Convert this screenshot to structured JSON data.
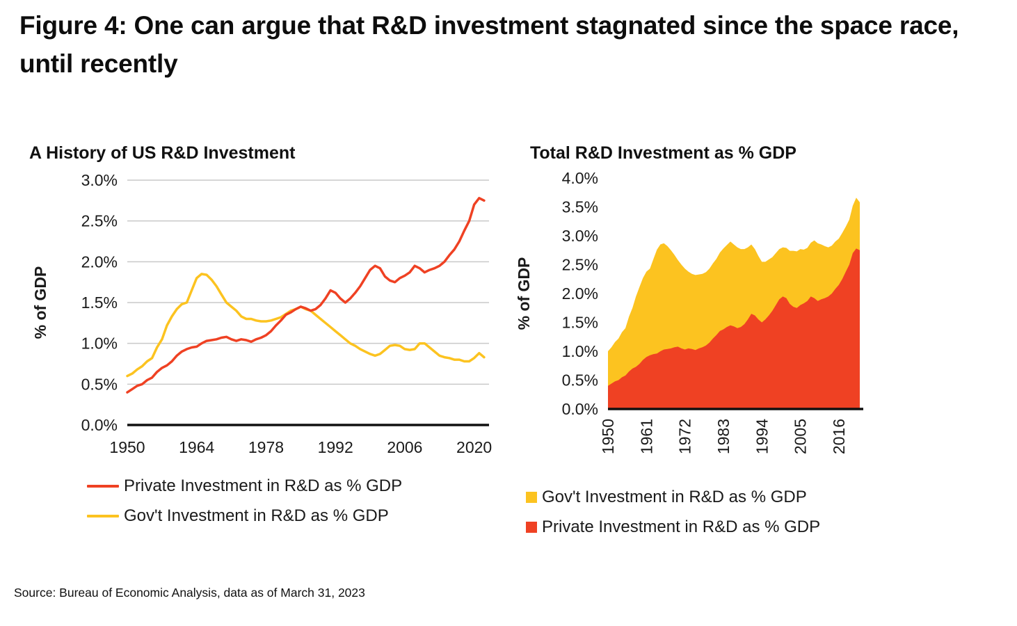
{
  "title": "Figure 4: One can argue that R&D investment stagnated since the space race, until recently",
  "source": "Source: Bureau of Economic Analysis, data as of March 31, 2023",
  "colors": {
    "private": "#ef4123",
    "govt": "#fcc320",
    "grid": "#c9c9c9",
    "axis": "#111111"
  },
  "chart_data": [
    {
      "type": "line",
      "title": "A History of US R&D Investment",
      "ylabel": "% of GDP",
      "x": [
        1950,
        1951,
        1952,
        1953,
        1954,
        1955,
        1956,
        1957,
        1958,
        1959,
        1960,
        1961,
        1962,
        1963,
        1964,
        1965,
        1966,
        1967,
        1968,
        1969,
        1970,
        1971,
        1972,
        1973,
        1974,
        1975,
        1976,
        1977,
        1978,
        1979,
        1980,
        1981,
        1982,
        1983,
        1984,
        1985,
        1986,
        1987,
        1988,
        1989,
        1990,
        1991,
        1992,
        1993,
        1994,
        1995,
        1996,
        1997,
        1998,
        1999,
        2000,
        2001,
        2002,
        2003,
        2004,
        2005,
        2006,
        2007,
        2008,
        2009,
        2010,
        2011,
        2012,
        2013,
        2014,
        2015,
        2016,
        2017,
        2018,
        2019,
        2020,
        2021,
        2022
      ],
      "series": [
        {
          "name": "Private Investment in R&D as % GDP",
          "color_key": "private",
          "values": [
            0.4,
            0.44,
            0.48,
            0.5,
            0.55,
            0.58,
            0.65,
            0.7,
            0.73,
            0.78,
            0.85,
            0.9,
            0.93,
            0.95,
            0.96,
            1.0,
            1.03,
            1.04,
            1.05,
            1.07,
            1.08,
            1.05,
            1.03,
            1.05,
            1.04,
            1.02,
            1.05,
            1.07,
            1.1,
            1.15,
            1.22,
            1.28,
            1.35,
            1.38,
            1.42,
            1.45,
            1.43,
            1.4,
            1.42,
            1.47,
            1.55,
            1.65,
            1.62,
            1.55,
            1.5,
            1.55,
            1.62,
            1.7,
            1.8,
            1.9,
            1.95,
            1.92,
            1.82,
            1.77,
            1.75,
            1.8,
            1.83,
            1.87,
            1.95,
            1.92,
            1.87,
            1.9,
            1.92,
            1.95,
            2.0,
            2.08,
            2.15,
            2.25,
            2.38,
            2.5,
            2.7,
            2.78,
            2.75
          ]
        },
        {
          "name": "Gov't Investment in R&D as % GDP",
          "color_key": "govt",
          "values": [
            0.6,
            0.63,
            0.68,
            0.72,
            0.78,
            0.82,
            0.95,
            1.05,
            1.22,
            1.33,
            1.42,
            1.48,
            1.5,
            1.65,
            1.8,
            1.85,
            1.84,
            1.78,
            1.7,
            1.6,
            1.5,
            1.45,
            1.4,
            1.33,
            1.3,
            1.3,
            1.28,
            1.27,
            1.27,
            1.28,
            1.3,
            1.32,
            1.36,
            1.4,
            1.42,
            1.45,
            1.42,
            1.4,
            1.35,
            1.3,
            1.25,
            1.2,
            1.15,
            1.1,
            1.05,
            1.0,
            0.97,
            0.93,
            0.9,
            0.87,
            0.85,
            0.87,
            0.92,
            0.97,
            0.98,
            0.97,
            0.93,
            0.92,
            0.93,
            1.0,
            1.0,
            0.95,
            0.9,
            0.85,
            0.83,
            0.82,
            0.8,
            0.8,
            0.78,
            0.78,
            0.82,
            0.88,
            0.83
          ]
        }
      ],
      "x_ticks": [
        1950,
        1964,
        1978,
        1992,
        2006,
        2020
      ],
      "y_ticks": [
        "0.0%",
        "0.5%",
        "1.0%",
        "1.5%",
        "2.0%",
        "2.5%",
        "3.0%"
      ],
      "y_max": 3.0,
      "y_step": 0.5,
      "grid": true,
      "legend": [
        "Private Investment in R&D as % GDP",
        "Gov't Investment in R&D as % GDP"
      ],
      "legend_position": "bottom"
    },
    {
      "type": "area",
      "title": "Total R&D Investment as % GDP",
      "ylabel": "% of GDP",
      "stacked": true,
      "x": [
        1950,
        1951,
        1952,
        1953,
        1954,
        1955,
        1956,
        1957,
        1958,
        1959,
        1960,
        1961,
        1962,
        1963,
        1964,
        1965,
        1966,
        1967,
        1968,
        1969,
        1970,
        1971,
        1972,
        1973,
        1974,
        1975,
        1976,
        1977,
        1978,
        1979,
        1980,
        1981,
        1982,
        1983,
        1984,
        1985,
        1986,
        1987,
        1988,
        1989,
        1990,
        1991,
        1992,
        1993,
        1994,
        1995,
        1996,
        1997,
        1998,
        1999,
        2000,
        2001,
        2002,
        2003,
        2004,
        2005,
        2006,
        2007,
        2008,
        2009,
        2010,
        2011,
        2012,
        2013,
        2014,
        2015,
        2016,
        2017,
        2018,
        2019,
        2020,
        2021,
        2022
      ],
      "series": [
        {
          "name": "Gov't Investment in R&D as % GDP",
          "color_key": "govt",
          "values": [
            0.6,
            0.63,
            0.68,
            0.72,
            0.78,
            0.82,
            0.95,
            1.05,
            1.22,
            1.33,
            1.42,
            1.48,
            1.5,
            1.65,
            1.8,
            1.85,
            1.84,
            1.78,
            1.7,
            1.6,
            1.5,
            1.45,
            1.4,
            1.33,
            1.3,
            1.3,
            1.28,
            1.27,
            1.27,
            1.28,
            1.3,
            1.32,
            1.36,
            1.4,
            1.42,
            1.45,
            1.42,
            1.4,
            1.35,
            1.3,
            1.25,
            1.2,
            1.15,
            1.1,
            1.05,
            1.0,
            0.97,
            0.93,
            0.9,
            0.87,
            0.85,
            0.87,
            0.92,
            0.97,
            0.98,
            0.97,
            0.93,
            0.92,
            0.93,
            1.0,
            1.0,
            0.95,
            0.9,
            0.85,
            0.83,
            0.82,
            0.8,
            0.8,
            0.78,
            0.78,
            0.82,
            0.88,
            0.83
          ]
        },
        {
          "name": "Private Investment in R&D as % GDP",
          "color_key": "private",
          "values": [
            0.4,
            0.44,
            0.48,
            0.5,
            0.55,
            0.58,
            0.65,
            0.7,
            0.73,
            0.78,
            0.85,
            0.9,
            0.93,
            0.95,
            0.96,
            1.0,
            1.03,
            1.04,
            1.05,
            1.07,
            1.08,
            1.05,
            1.03,
            1.05,
            1.04,
            1.02,
            1.05,
            1.07,
            1.1,
            1.15,
            1.22,
            1.28,
            1.35,
            1.38,
            1.42,
            1.45,
            1.43,
            1.4,
            1.42,
            1.47,
            1.55,
            1.65,
            1.62,
            1.55,
            1.5,
            1.55,
            1.62,
            1.7,
            1.8,
            1.9,
            1.95,
            1.92,
            1.82,
            1.77,
            1.75,
            1.8,
            1.83,
            1.87,
            1.95,
            1.92,
            1.87,
            1.9,
            1.92,
            1.95,
            2.0,
            2.08,
            2.15,
            2.25,
            2.38,
            2.5,
            2.7,
            2.78,
            2.75
          ]
        }
      ],
      "x_ticks": [
        1950,
        1961,
        1972,
        1983,
        1994,
        2005,
        2016
      ],
      "y_ticks": [
        "0.0%",
        "0.5%",
        "1.0%",
        "1.5%",
        "2.0%",
        "2.5%",
        "3.0%",
        "3.5%",
        "4.0%"
      ],
      "y_max": 4.0,
      "y_step": 0.5,
      "grid": false,
      "legend": [
        "Gov't Investment in R&D as % GDP",
        "Private Investment in R&D as % GDP"
      ],
      "legend_position": "bottom"
    }
  ]
}
